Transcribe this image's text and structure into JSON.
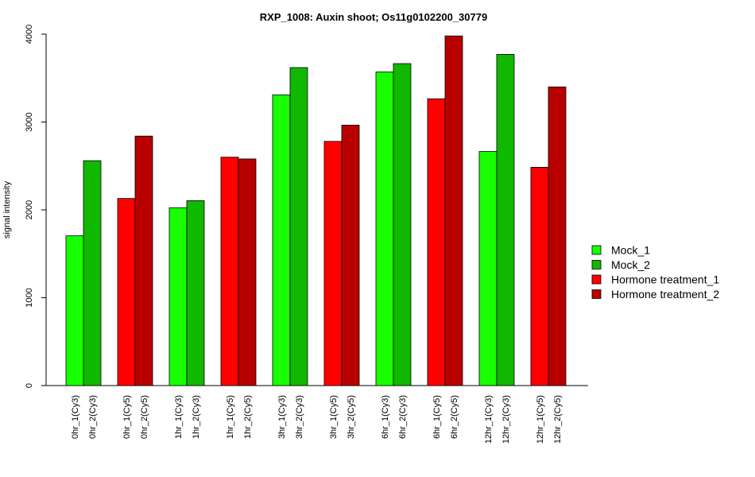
{
  "chart_data": {
    "type": "bar",
    "title": "RXP_1008: Auxin shoot; Os11g0102200_30779",
    "xlabel": "",
    "ylabel": "signal intensity",
    "ylim": [
      0,
      4000
    ],
    "yticks": [
      0,
      1000,
      2000,
      3000,
      4000
    ],
    "grid": false,
    "legend_position": "right",
    "legend": [
      {
        "name": "Mock_1",
        "color": "#17ff00"
      },
      {
        "name": "Mock_2",
        "color": "#11b800"
      },
      {
        "name": "Hormone treatment_1",
        "color": "#ff0000"
      },
      {
        "name": "Hormone treatment_2",
        "color": "#b80000"
      }
    ],
    "groups": [
      {
        "bars": [
          {
            "label": "0hr_1(Cy3)",
            "value": 1705,
            "color": "#17ff00"
          },
          {
            "label": "0hr_2(Cy3)",
            "value": 2560,
            "color": "#11b800"
          }
        ]
      },
      {
        "bars": [
          {
            "label": "0hr_1(Cy5)",
            "value": 2130,
            "color": "#ff0000"
          },
          {
            "label": "0hr_2(Cy5)",
            "value": 2840,
            "color": "#b80000"
          }
        ]
      },
      {
        "bars": [
          {
            "label": "1hr_1(Cy3)",
            "value": 2025,
            "color": "#17ff00"
          },
          {
            "label": "1hr_2(Cy3)",
            "value": 2105,
            "color": "#11b800"
          }
        ]
      },
      {
        "bars": [
          {
            "label": "1hr_1(Cy5)",
            "value": 2600,
            "color": "#ff0000"
          },
          {
            "label": "1hr_2(Cy5)",
            "value": 2580,
            "color": "#b80000"
          }
        ]
      },
      {
        "bars": [
          {
            "label": "3hr_1(Cy3)",
            "value": 3310,
            "color": "#17ff00"
          },
          {
            "label": "3hr_2(Cy3)",
            "value": 3620,
            "color": "#11b800"
          }
        ]
      },
      {
        "bars": [
          {
            "label": "3hr_1(Cy5)",
            "value": 2780,
            "color": "#ff0000"
          },
          {
            "label": "3hr_2(Cy5)",
            "value": 2965,
            "color": "#b80000"
          }
        ]
      },
      {
        "bars": [
          {
            "label": "6hr_1(Cy3)",
            "value": 3570,
            "color": "#17ff00"
          },
          {
            "label": "6hr_2(Cy3)",
            "value": 3665,
            "color": "#11b800"
          }
        ]
      },
      {
        "bars": [
          {
            "label": "6hr_1(Cy5)",
            "value": 3265,
            "color": "#ff0000"
          },
          {
            "label": "6hr_2(Cy5)",
            "value": 3980,
            "color": "#b80000"
          }
        ]
      },
      {
        "bars": [
          {
            "label": "12hr_1(Cy3)",
            "value": 2665,
            "color": "#17ff00"
          },
          {
            "label": "12hr_2(Cy3)",
            "value": 3770,
            "color": "#11b800"
          }
        ]
      },
      {
        "bars": [
          {
            "label": "12hr_1(Cy5)",
            "value": 2485,
            "color": "#ff0000"
          },
          {
            "label": "12hr_2(Cy5)",
            "value": 3400,
            "color": "#b80000"
          }
        ]
      }
    ]
  }
}
